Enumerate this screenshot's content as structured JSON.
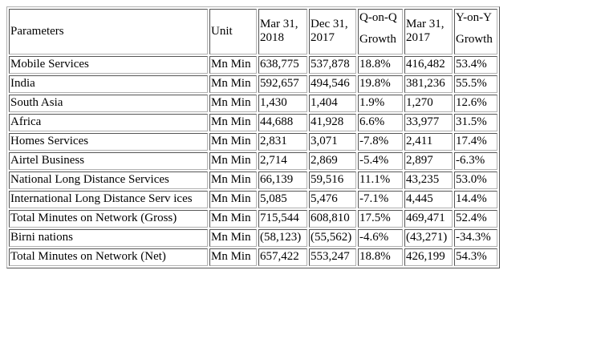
{
  "table": {
    "headers": {
      "parameters": "Parameters",
      "unit": "Unit",
      "mar2018": "Mar 31, 2018",
      "dec2017": "Dec 31, 2017",
      "qoq_top": "Q-on-Q",
      "qoq_bottom": "Growth",
      "mar2017": "Mar 31, 2017",
      "yoy_top": "Y-on-Y",
      "yoy_bottom": "Growth"
    },
    "rows": [
      {
        "parameter": "Mobile Services",
        "unit": "Mn Min",
        "mar2018": "638,775",
        "dec2017": "537,878",
        "qoq": "18.8%",
        "mar2017": "416,482",
        "yoy": "53.4%"
      },
      {
        "parameter": "India",
        "unit": "Mn Min",
        "mar2018": "592,657",
        "dec2017": "494,546",
        "qoq": "19.8%",
        "mar2017": "381,236",
        "yoy": "55.5%"
      },
      {
        "parameter": "South Asia",
        "unit": "Mn Min",
        "mar2018": "1,430",
        "dec2017": "1,404",
        "qoq": "1.9%",
        "mar2017": "1,270",
        "yoy": "12.6%"
      },
      {
        "parameter": "Africa",
        "unit": "Mn Min",
        "mar2018": "44,688",
        "dec2017": "41,928",
        "qoq": "6.6%",
        "mar2017": "33,977",
        "yoy": "31.5%"
      },
      {
        "parameter": "Homes Services",
        "unit": "Mn Min",
        "mar2018": "2,831",
        "dec2017": "3,071",
        "qoq": "-7.8%",
        "mar2017": "2,411",
        "yoy": "17.4%"
      },
      {
        "parameter": "Airtel Business",
        "unit": "Mn Min",
        "mar2018": "2,714",
        "dec2017": "2,869",
        "qoq": "-5.4%",
        "mar2017": "2,897",
        "yoy": "-6.3%"
      },
      {
        "parameter": "National Long Distance Services",
        "unit": "Mn Min",
        "mar2018": "66,139",
        "dec2017": "59,516",
        "qoq": "11.1%",
        "mar2017": "43,235",
        "yoy": "53.0%"
      },
      {
        "parameter": "International Long Distance Serv ices",
        "unit": "Mn Min",
        "mar2018": "5,085",
        "dec2017": "5,476",
        "qoq": "-7.1%",
        "mar2017": "4,445",
        "yoy": "14.4%"
      },
      {
        "parameter": "Total Minutes on Network (Gross)",
        "unit": "Mn Min",
        "mar2018": "715,544",
        "dec2017": "608,810",
        "qoq": "17.5%",
        "mar2017": "469,471",
        "yoy": "52.4%"
      },
      {
        "parameter": "Birni nations",
        "unit": "Mn Min",
        "mar2018": "(58,123)",
        "dec2017": "(55,562)",
        "qoq": "-4.6%",
        "mar2017": "(43,271)",
        "yoy": "-34.3%"
      },
      {
        "parameter": "Total Minutes on Network (Net)",
        "unit": "Mn Min",
        "mar2018": "657,422",
        "dec2017": "553,247",
        "qoq": "18.8%",
        "mar2017": "426,199",
        "yoy": "54.3%"
      }
    ]
  }
}
